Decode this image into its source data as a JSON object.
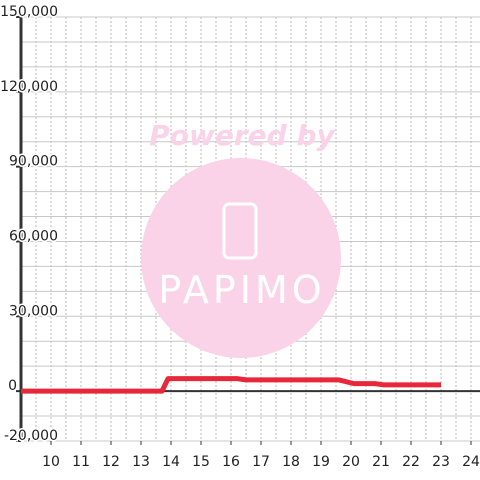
{
  "chart_data": {
    "type": "line",
    "watermark": {
      "text": "Powered by",
      "logo": "PAPIMO"
    },
    "x": [
      9,
      13.7,
      13.9,
      16.2,
      16.5,
      19.6,
      20.1,
      20.8,
      21.1,
      23
    ],
    "series": [
      {
        "color": "#e8283a",
        "values": [
          0,
          0,
          5000,
          5000,
          4500,
          4500,
          3000,
          3000,
          2500,
          2500
        ]
      }
    ],
    "xlim": [
      9,
      24.3
    ],
    "xticks": [
      10,
      11,
      12,
      13,
      14,
      15,
      16,
      17,
      18,
      19,
      20,
      21,
      22,
      23,
      24
    ],
    "ylim": [
      -20000,
      150000
    ],
    "yticks": [
      {
        "value": -20000,
        "label": "-20,000"
      },
      0,
      {
        "value": 30000,
        "label": "30,000"
      },
      {
        "value": 60000,
        "label": "60,000"
      },
      {
        "value": 90000,
        "label": "90,000"
      },
      {
        "value": 120000,
        "label": "120,000"
      },
      {
        "value": 150000,
        "label": "150,000"
      }
    ],
    "x_grid_step": 0.5,
    "y_grid_step": 10000,
    "grid": true
  }
}
